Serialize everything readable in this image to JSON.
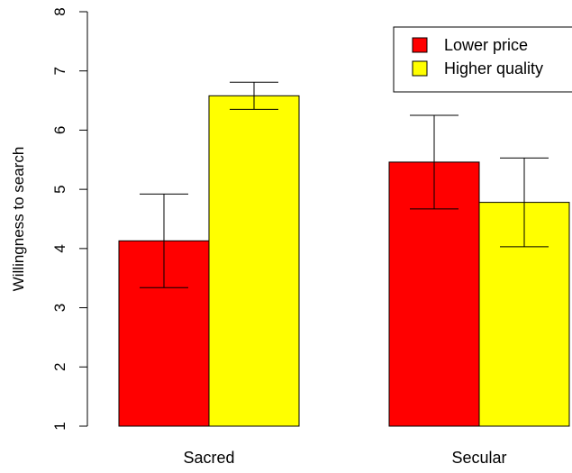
{
  "chart_data": {
    "type": "bar",
    "categories": [
      "Sacred",
      "Secular"
    ],
    "series": [
      {
        "name": "Lower price",
        "color": "#ff0000",
        "values": [
          4.13,
          5.46
        ],
        "error_low": [
          3.34,
          4.67
        ],
        "error_high": [
          4.92,
          6.25
        ]
      },
      {
        "name": "Higher quality",
        "color": "#ffff00",
        "values": [
          6.58,
          4.78
        ],
        "error_low": [
          6.35,
          4.03
        ],
        "error_high": [
          6.81,
          5.53
        ]
      }
    ],
    "ylabel": "Willingness to search",
    "xlabel": "",
    "title": "",
    "ylim": [
      1,
      8
    ],
    "yticks": [
      "1",
      "2",
      "3",
      "4",
      "5",
      "6",
      "7",
      "8"
    ],
    "grid": false,
    "legend_position": "top-right"
  }
}
